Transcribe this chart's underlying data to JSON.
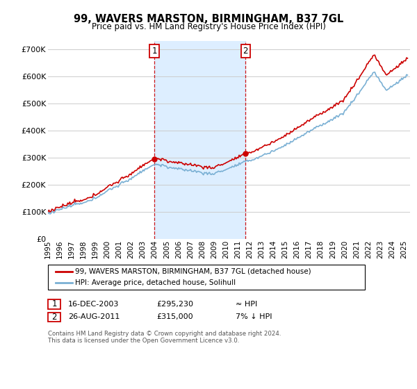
{
  "title": "99, WAVERS MARSTON, BIRMINGHAM, B37 7GL",
  "subtitle": "Price paid vs. HM Land Registry's House Price Index (HPI)",
  "ylabel_ticks": [
    "£0",
    "£100K",
    "£200K",
    "£300K",
    "£400K",
    "£500K",
    "£600K",
    "£700K"
  ],
  "ytick_values": [
    0,
    100000,
    200000,
    300000,
    400000,
    500000,
    600000,
    700000
  ],
  "ylim": [
    0,
    730000
  ],
  "xlim_start": 1995.0,
  "xlim_end": 2025.5,
  "sale1_date": 2003.96,
  "sale1_price": 295230,
  "sale2_date": 2011.65,
  "sale2_price": 315000,
  "red_line_color": "#cc0000",
  "blue_line_color": "#7ab0d4",
  "shaded_region_color": "#ddeeff",
  "annotation_box_color": "#cc0000",
  "grid_color": "#cccccc",
  "legend_entry1": "99, WAVERS MARSTON, BIRMINGHAM, B37 7GL (detached house)",
  "legend_entry2": "HPI: Average price, detached house, Solihull",
  "table_row1": [
    "1",
    "16-DEC-2003",
    "£295,230",
    "≈ HPI"
  ],
  "table_row2": [
    "2",
    "26-AUG-2011",
    "£315,000",
    "7% ↓ HPI"
  ],
  "footnote": "Contains HM Land Registry data © Crown copyright and database right 2024.\nThis data is licensed under the Open Government Licence v3.0.",
  "xtick_years": [
    1995,
    1996,
    1997,
    1998,
    1999,
    2000,
    2001,
    2002,
    2003,
    2004,
    2005,
    2006,
    2007,
    2008,
    2009,
    2010,
    2011,
    2012,
    2013,
    2014,
    2015,
    2016,
    2017,
    2018,
    2019,
    2020,
    2021,
    2022,
    2023,
    2024,
    2025
  ]
}
